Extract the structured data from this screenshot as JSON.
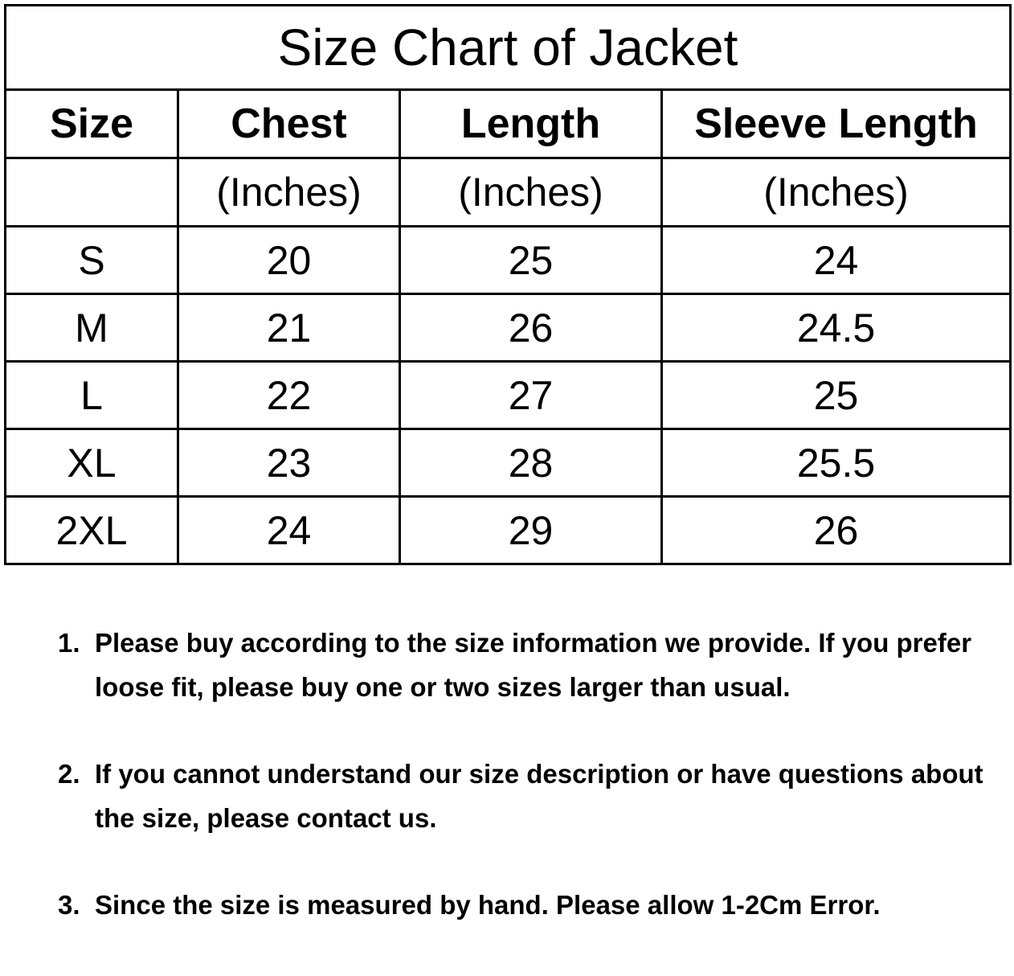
{
  "title": "Size Chart of  Jacket",
  "columns": [
    {
      "header": "Size",
      "unit": ""
    },
    {
      "header": "Chest",
      "unit": "(Inches)"
    },
    {
      "header": "Length",
      "unit": "(Inches)"
    },
    {
      "header": "Sleeve Length",
      "unit": "(Inches)"
    }
  ],
  "rows": [
    [
      "S",
      "20",
      "25",
      "24"
    ],
    [
      "M",
      "21",
      "26",
      "24.5"
    ],
    [
      "L",
      "22",
      "27",
      "25"
    ],
    [
      "XL",
      "23",
      "28",
      "25.5"
    ],
    [
      "2XL",
      "24",
      "29",
      "26"
    ]
  ],
  "notes": [
    {
      "num": "1.",
      "text": "Please buy according to the size information we provide. If you prefer loose fit, please buy one or two sizes larger than usual."
    },
    {
      "num": "2.",
      "text": "If you cannot understand our size description or have questions about the size, please contact us."
    },
    {
      "num": "3.",
      "text": "Since the size is measured by hand. Please allow 1-2Cm Error."
    }
  ]
}
